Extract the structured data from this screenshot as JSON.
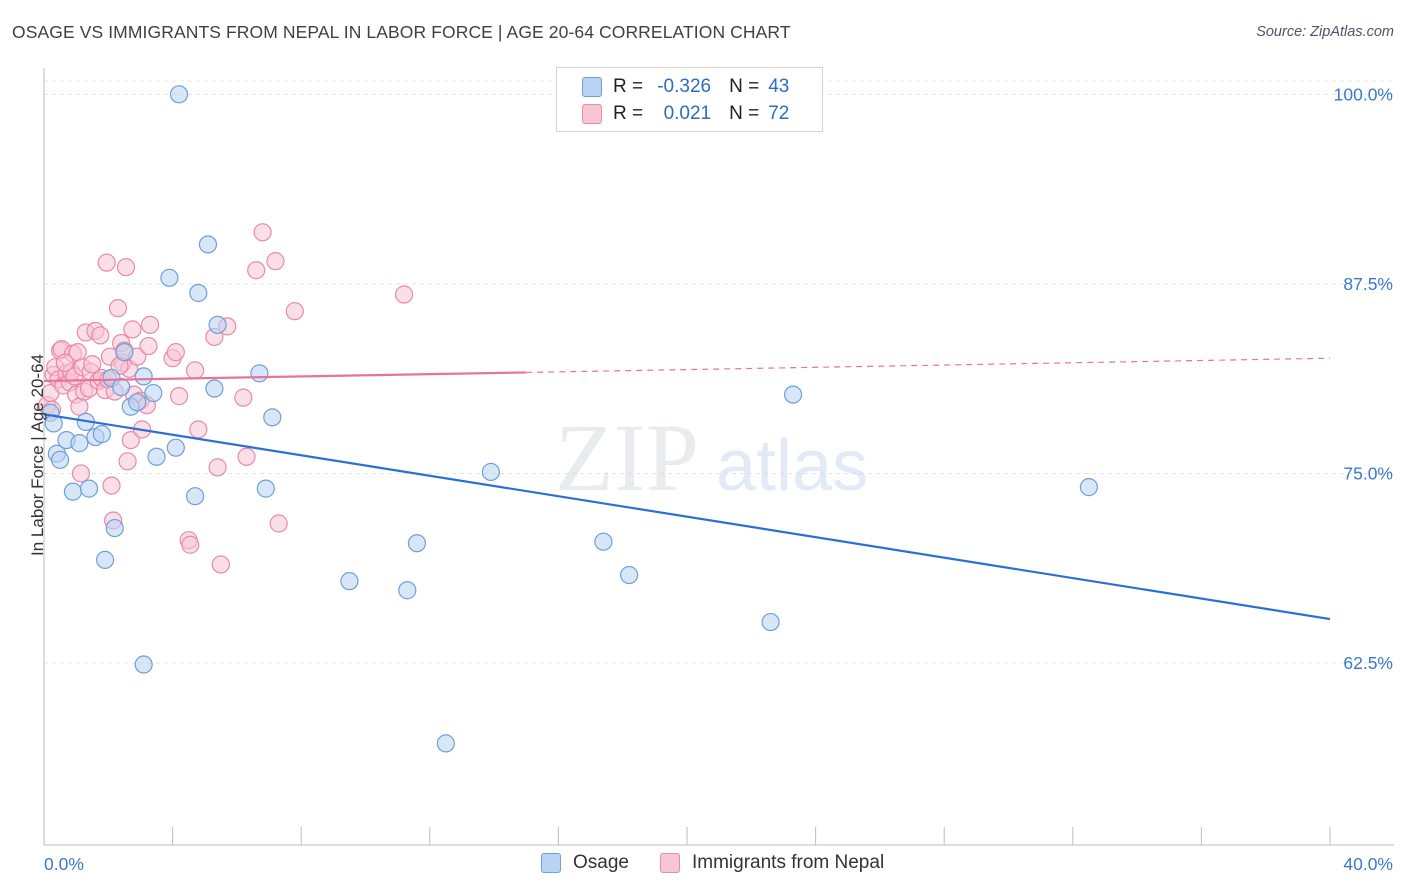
{
  "title": "OSAGE VS IMMIGRANTS FROM NEPAL IN LABOR FORCE | AGE 20-64 CORRELATION CHART",
  "source": "Source: ZipAtlas.com",
  "watermark": {
    "zip": "ZIP",
    "atlas": "atlas"
  },
  "legend": {
    "rows": [
      {
        "r_label": "R =",
        "r_value": "-0.326",
        "n_label": "N =",
        "n_value": "43"
      },
      {
        "r_label": "R =",
        "r_value": "0.021",
        "n_label": "N =",
        "n_value": "72"
      }
    ]
  },
  "colors": {
    "osage_fill": "#b8d3f3",
    "osage_stroke": "#6f9fd8",
    "osage_line": "#2b6fd6",
    "nepal_fill": "#f8c5d5",
    "nepal_stroke": "#e88aa8",
    "nepal_line": "#e8739a",
    "tick_label": "#3a78cc"
  },
  "chart_data": {
    "type": "scatter",
    "title": "OSAGE VS IMMIGRANTS FROM NEPAL IN LABOR FORCE | AGE 20-64 CORRELATION CHART",
    "xlabel": "",
    "ylabel": "In Labor Force | Age 20-64",
    "xlim": [
      0,
      40
    ],
    "ylim": [
      50.5,
      102
    ],
    "x_tick_labels": [
      "0.0%",
      "40.0%"
    ],
    "y_ticks": [
      62.5,
      75.0,
      87.5,
      100.0
    ],
    "y_tick_labels": [
      "62.5%",
      "75.0%",
      "87.5%",
      "100.0%"
    ],
    "grid": true,
    "legend_position": "bottom-center",
    "series": [
      {
        "name": "Osage",
        "r": -0.326,
        "n": 43,
        "trend": {
          "x": [
            0,
            40
          ],
          "y": [
            78.9,
            65.4
          ]
        },
        "points": [
          [
            0.2,
            79.0
          ],
          [
            0.3,
            78.3
          ],
          [
            0.4,
            76.3
          ],
          [
            0.5,
            75.9
          ],
          [
            0.7,
            77.2
          ],
          [
            0.9,
            73.8
          ],
          [
            1.1,
            77.0
          ],
          [
            1.3,
            78.4
          ],
          [
            1.4,
            74.0
          ],
          [
            1.6,
            77.4
          ],
          [
            1.8,
            77.6
          ],
          [
            1.9,
            69.3
          ],
          [
            2.1,
            81.3
          ],
          [
            2.2,
            71.4
          ],
          [
            2.4,
            80.7
          ],
          [
            2.5,
            83.0
          ],
          [
            2.7,
            79.4
          ],
          [
            2.9,
            79.7
          ],
          [
            3.1,
            81.4
          ],
          [
            3.1,
            62.4
          ],
          [
            3.4,
            80.3
          ],
          [
            3.5,
            76.1
          ],
          [
            3.9,
            87.9
          ],
          [
            4.1,
            76.7
          ],
          [
            4.2,
            100.0
          ],
          [
            4.7,
            73.5
          ],
          [
            4.8,
            86.9
          ],
          [
            5.1,
            90.1
          ],
          [
            5.3,
            80.6
          ],
          [
            5.4,
            84.8
          ],
          [
            6.7,
            81.6
          ],
          [
            6.9,
            74.0
          ],
          [
            7.1,
            78.7
          ],
          [
            9.5,
            67.9
          ],
          [
            11.3,
            67.3
          ],
          [
            11.6,
            70.4
          ],
          [
            12.5,
            57.2
          ],
          [
            13.9,
            75.1
          ],
          [
            17.4,
            70.5
          ],
          [
            18.2,
            68.3
          ],
          [
            22.6,
            65.2
          ],
          [
            23.3,
            80.2
          ],
          [
            32.5,
            74.1
          ]
        ]
      },
      {
        "name": "Immigrants from Nepal",
        "r": 0.021,
        "n": 72,
        "trend": {
          "x": [
            0,
            40
          ],
          "y": [
            81.1,
            82.6
          ],
          "solid_until_x": 15
        },
        "points": [
          [
            0.1,
            79.5
          ],
          [
            0.2,
            80.3
          ],
          [
            0.25,
            79.2
          ],
          [
            0.3,
            81.5
          ],
          [
            0.35,
            82.0
          ],
          [
            0.45,
            81.2
          ],
          [
            0.5,
            83.1
          ],
          [
            0.55,
            83.2
          ],
          [
            0.6,
            80.8
          ],
          [
            0.7,
            81.6
          ],
          [
            0.8,
            81.0
          ],
          [
            0.85,
            81.7
          ],
          [
            0.9,
            82.9
          ],
          [
            0.95,
            81.4
          ],
          [
            1.0,
            80.2
          ],
          [
            1.05,
            83.0
          ],
          [
            1.1,
            79.4
          ],
          [
            1.2,
            82.0
          ],
          [
            1.25,
            80.4
          ],
          [
            1.3,
            84.3
          ],
          [
            1.4,
            80.6
          ],
          [
            1.45,
            81.7
          ],
          [
            1.5,
            82.2
          ],
          [
            1.6,
            84.4
          ],
          [
            1.7,
            81.1
          ],
          [
            1.75,
            84.1
          ],
          [
            1.8,
            81.3
          ],
          [
            1.9,
            80.5
          ],
          [
            2.0,
            81.2
          ],
          [
            2.05,
            82.7
          ],
          [
            2.1,
            74.2
          ],
          [
            2.15,
            71.9
          ],
          [
            2.2,
            80.4
          ],
          [
            2.3,
            85.9
          ],
          [
            2.4,
            83.6
          ],
          [
            2.45,
            82.3
          ],
          [
            2.5,
            83.1
          ],
          [
            2.55,
            88.6
          ],
          [
            2.6,
            75.8
          ],
          [
            2.65,
            81.9
          ],
          [
            2.7,
            77.2
          ],
          [
            2.75,
            84.5
          ],
          [
            2.8,
            80.2
          ],
          [
            2.9,
            82.7
          ],
          [
            3.0,
            79.8
          ],
          [
            3.05,
            77.9
          ],
          [
            3.2,
            79.5
          ],
          [
            3.25,
            83.4
          ],
          [
            3.3,
            84.8
          ],
          [
            4.0,
            82.6
          ],
          [
            4.1,
            83.0
          ],
          [
            4.2,
            80.1
          ],
          [
            4.5,
            70.6
          ],
          [
            4.55,
            70.3
          ],
          [
            4.7,
            81.8
          ],
          [
            4.8,
            77.9
          ],
          [
            5.3,
            84.0
          ],
          [
            5.4,
            75.4
          ],
          [
            5.5,
            69.0
          ],
          [
            5.7,
            84.7
          ],
          [
            6.2,
            80.0
          ],
          [
            6.3,
            76.1
          ],
          [
            6.6,
            88.4
          ],
          [
            6.8,
            90.9
          ],
          [
            7.2,
            89.0
          ],
          [
            7.3,
            71.7
          ],
          [
            7.8,
            85.7
          ],
          [
            11.2,
            86.8
          ],
          [
            1.95,
            88.9
          ],
          [
            1.15,
            75.0
          ],
          [
            2.35,
            82.1
          ],
          [
            0.65,
            82.3
          ]
        ]
      }
    ]
  }
}
